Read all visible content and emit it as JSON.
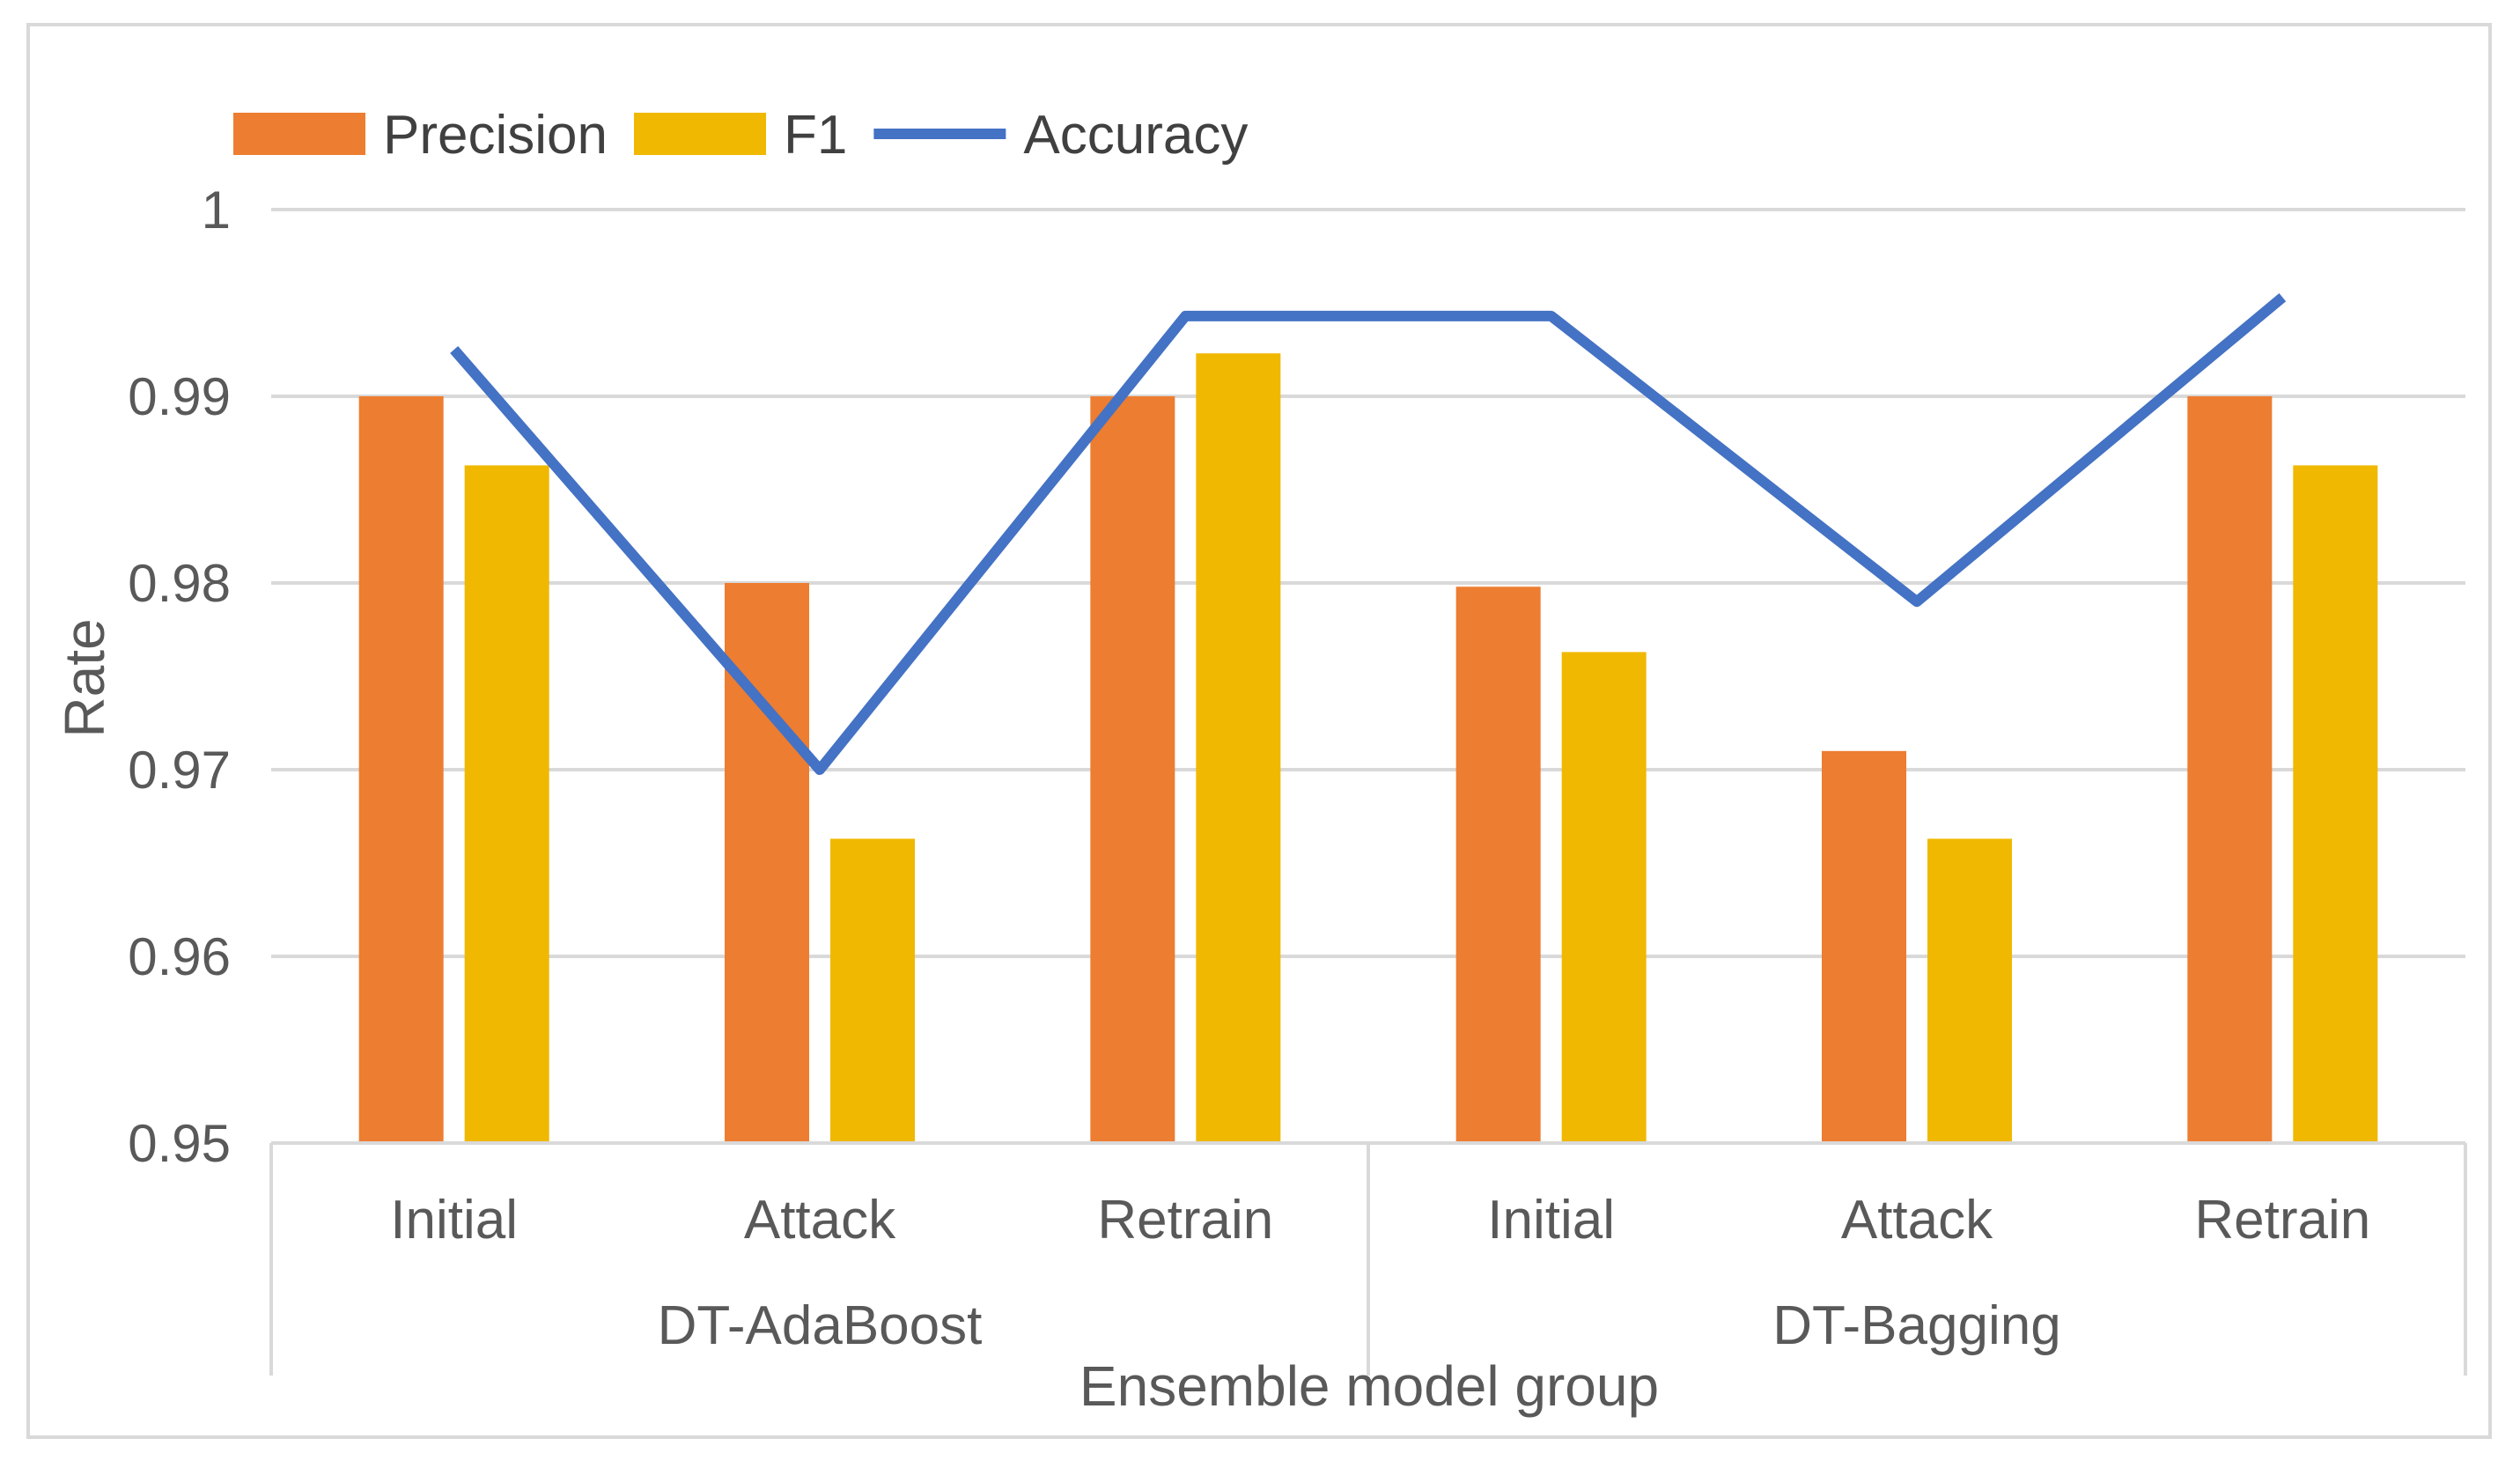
{
  "chart_data": {
    "type": "bar",
    "title": "",
    "xlabel": "Ensemble model group",
    "ylabel": "Rate",
    "ylim": [
      0.95,
      1.0
    ],
    "yticks": [
      0.95,
      0.96,
      0.97,
      0.98,
      0.99,
      1
    ],
    "ytick_labels": [
      "0.95",
      "0.96",
      "0.97",
      "0.98",
      "0.99",
      "1"
    ],
    "grid": true,
    "legend_position": "top-left",
    "groups": [
      {
        "name": "DT-AdaBoost",
        "categories": [
          "Initial",
          "Attack",
          "Retrain"
        ]
      },
      {
        "name": "DT-Bagging",
        "categories": [
          "Initial",
          "Attack",
          "Retrain"
        ]
      }
    ],
    "categories": [
      "Initial",
      "Attack",
      "Retrain",
      "Initial",
      "Attack",
      "Retrain"
    ],
    "series": [
      {
        "name": "Precision",
        "type": "bar",
        "color": "#ED7D31",
        "values": [
          0.99,
          0.98,
          0.99,
          0.9798,
          0.971,
          0.99
        ]
      },
      {
        "name": "F1",
        "type": "bar",
        "color": "#F0B800",
        "values": [
          0.9863,
          0.9663,
          0.9923,
          0.9763,
          0.9663,
          0.9863
        ]
      },
      {
        "name": "Accuracy",
        "type": "line",
        "color": "#4472C4",
        "values": [
          0.9925,
          0.97,
          0.9943,
          0.9943,
          0.979,
          0.9953
        ]
      }
    ]
  }
}
